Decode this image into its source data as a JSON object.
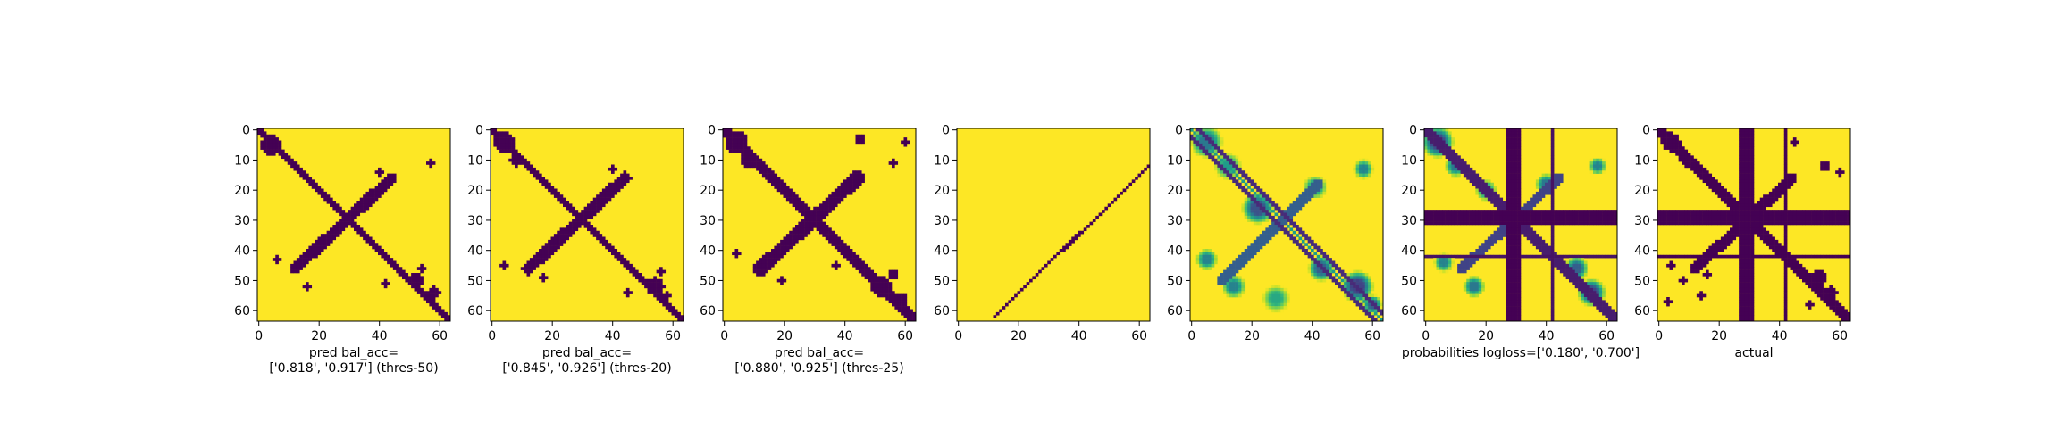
{
  "colors": {
    "dark": "#440154",
    "yellow": "#fde725",
    "colormap": "viridis"
  },
  "chart_data": [
    {
      "type": "heatmap",
      "panel": "pred-thres-50",
      "xlim": [
        0,
        64
      ],
      "ylim": [
        64,
        0
      ],
      "xticks": [
        "0",
        "20",
        "40",
        "60"
      ],
      "yticks": [
        "0",
        "10",
        "20",
        "30",
        "40",
        "50",
        "60"
      ],
      "caption": [
        "pred bal_acc=",
        "['0.818', '0.917'] (thres-50)"
      ],
      "bal_acc": [
        0.818,
        0.917
      ],
      "threshold": 50,
      "pattern": "binary contact map: thick main diagonal, anti-diagonal crossing band, small off-diagonal blobs"
    },
    {
      "type": "heatmap",
      "panel": "pred-thres-20",
      "xlim": [
        0,
        64
      ],
      "ylim": [
        64,
        0
      ],
      "xticks": [
        "0",
        "20",
        "40",
        "60"
      ],
      "yticks": [
        "0",
        "10",
        "20",
        "30",
        "40",
        "50",
        "60"
      ],
      "caption": [
        "pred bal_acc=",
        "['0.845', '0.926'] (thres-20)"
      ],
      "bal_acc": [
        0.845,
        0.926
      ],
      "threshold": 20,
      "pattern": "binary contact map: thick main diagonal, anti-diagonal crossing band, more off-diagonal blobs"
    },
    {
      "type": "heatmap",
      "panel": "pred-thres-25",
      "xlim": [
        0,
        64
      ],
      "ylim": [
        64,
        0
      ],
      "xticks": [
        "0",
        "20",
        "40",
        "60"
      ],
      "yticks": [
        "0",
        "10",
        "20",
        "30",
        "40",
        "50",
        "60"
      ],
      "caption": [
        "pred bal_acc=",
        "['0.880', '0.925'] (thres-25)"
      ],
      "bal_acc": [
        0.88,
        0.925
      ],
      "threshold": 25,
      "pattern": "binary contact map: thick main diagonal, anti-diagonal crossing band, several off-diagonal blobs"
    },
    {
      "type": "heatmap",
      "panel": "anti-diagonal-line",
      "xlim": [
        0,
        64
      ],
      "ylim": [
        64,
        0
      ],
      "xticks": [
        "0",
        "20",
        "40",
        "60"
      ],
      "yticks": [
        "0",
        "10",
        "20",
        "30",
        "40",
        "50",
        "60"
      ],
      "caption": [],
      "pattern": "yellow background with a single thin line from (12, 62) to (63, 12)"
    },
    {
      "type": "heatmap",
      "panel": "probabilities",
      "xlim": [
        0,
        64
      ],
      "ylim": [
        64,
        0
      ],
      "xticks": [
        "0",
        "20",
        "40",
        "60"
      ],
      "yticks": [
        "0",
        "10",
        "20",
        "30",
        "40",
        "50",
        "60"
      ],
      "caption": [],
      "pattern": "continuous viridis probability map with double-line main diagonal and blurred blobs"
    },
    {
      "type": "heatmap",
      "panel": "probabilities-logloss",
      "xlim": [
        0,
        64
      ],
      "ylim": [
        64,
        0
      ],
      "xticks": [
        "0",
        "20",
        "40",
        "60"
      ],
      "yticks": [
        "0",
        "10",
        "20",
        "30",
        "40",
        "50",
        "60"
      ],
      "caption": [
        "probabilities logloss=['0.180', '0.700']"
      ],
      "logloss": [
        0.18,
        0.7
      ],
      "pattern": "probability map with dark bands at row/column 27-31, thin lines at row/column 42"
    },
    {
      "type": "heatmap",
      "panel": "actual",
      "xlim": [
        0,
        64
      ],
      "ylim": [
        64,
        0
      ],
      "xticks": [
        "0",
        "20",
        "40",
        "60"
      ],
      "yticks": [
        "0",
        "10",
        "20",
        "30",
        "40",
        "50",
        "60"
      ],
      "caption": [
        "actual"
      ],
      "pattern": "binary ground-truth contact map with dark bands at row/column 27-31, thin lines at row/column 42, noisy blobs"
    }
  ]
}
